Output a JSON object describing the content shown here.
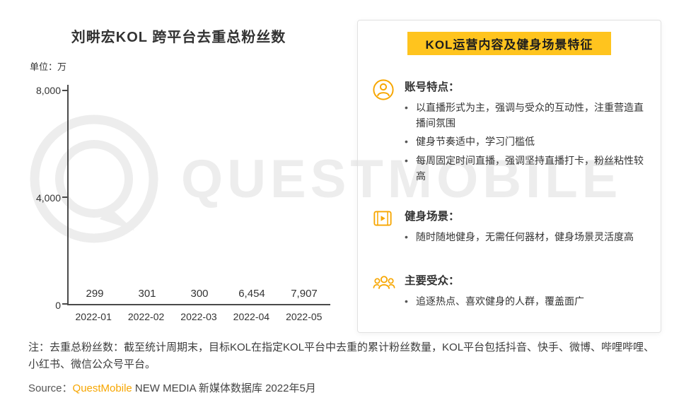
{
  "chart": {
    "title": "刘畊宏KOL 跨平台去重总粉丝数",
    "unit_label": "单位：万",
    "chart_data": {
      "type": "bar",
      "categories": [
        "2022-01",
        "2022-02",
        "2022-03",
        "2022-04",
        "2022-05"
      ],
      "values": [
        299,
        301,
        300,
        6454,
        7907
      ],
      "value_labels": [
        "299",
        "301",
        "300",
        "6,454",
        "7,907"
      ],
      "ylim": [
        0,
        8000
      ],
      "yticks": {
        "top": "8,000",
        "mid": "4,000",
        "bottom": "0"
      },
      "bar_color_top": "#FFC945",
      "bar_color_bottom": "#F7A600",
      "grid": false,
      "legend": "none"
    }
  },
  "panel": {
    "title": "KOL运营内容及健身场景特征",
    "highlight_color": "#FFC41E",
    "icon_color": "#F7A600",
    "sections": [
      {
        "icon": "user-circle-icon",
        "heading": "账号特点：",
        "bullets": [
          "以直播形式为主，强调与受众的互动性，注重营造直播间氛围",
          "健身节奏适中，学习门槛低",
          "每周固定时间直播，强调坚持直播打卡，粉丝粘性较高"
        ]
      },
      {
        "icon": "video-play-icon",
        "heading": "健身场景：",
        "bullets": [
          "随时随地健身，无需任何器材，健身场景灵活度高"
        ]
      },
      {
        "icon": "people-group-icon",
        "heading": "主要受众：",
        "bullets": [
          "追逐热点、喜欢健身的人群，覆盖面广"
        ]
      }
    ]
  },
  "footer": {
    "note": "注：去重总粉丝数：截至统计周期末，目标KOL在指定KOL平台中去重的累计粉丝数量，KOL平台包括抖音、快手、微博、哔哩哔哩、小红书、微信公众号平台。",
    "source_prefix": "Source：",
    "source_brand": "QuestMobile",
    "source_suffix": " NEW MEDIA 新媒体数据库 2022年5月"
  },
  "watermark": {
    "text": "QUESTMOBILE"
  }
}
